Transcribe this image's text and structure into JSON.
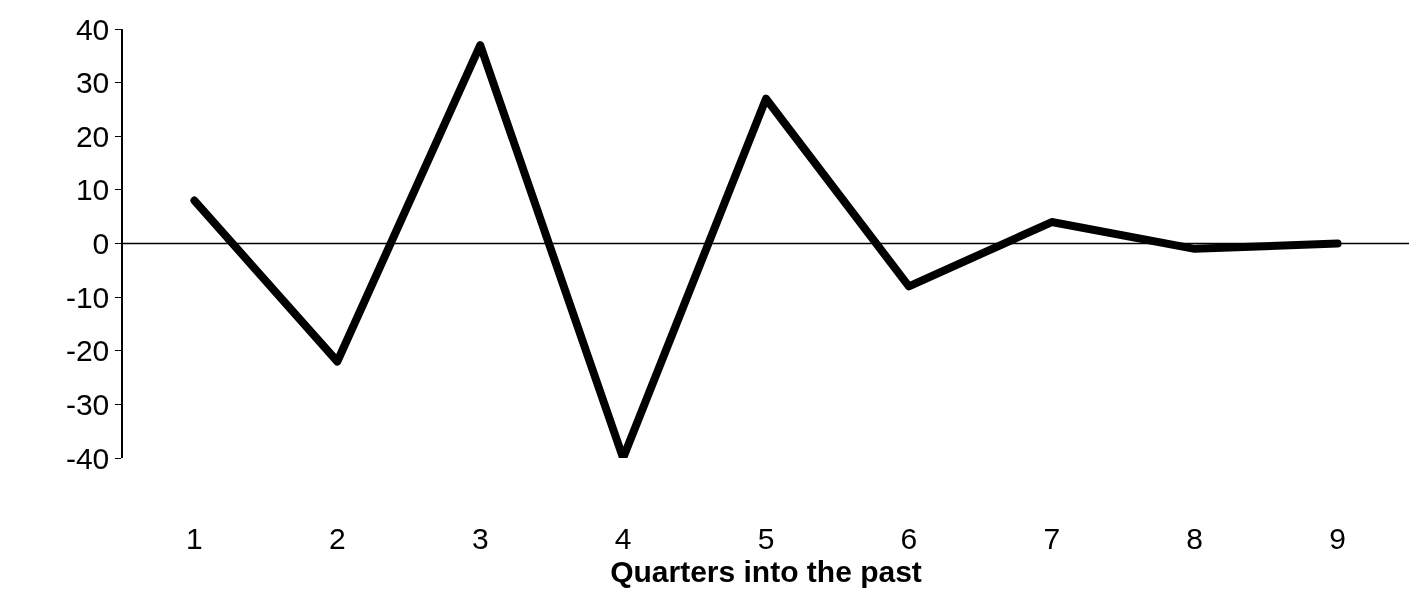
{
  "chart_data": {
    "type": "line",
    "xlabel": "Quarters into the past",
    "categories": [
      "1",
      "2",
      "3",
      "4",
      "5",
      "6",
      "7",
      "8",
      "9"
    ],
    "series": [
      {
        "color": "#000000",
        "values": [
          8,
          -22,
          37,
          -40,
          27,
          -8,
          4,
          -1,
          0
        ]
      }
    ],
    "ylim": [
      -40,
      40
    ],
    "yticks": [
      -40,
      -30,
      -20,
      -10,
      0,
      10,
      20,
      30,
      40
    ],
    "ref_lines": [
      {
        "axis": "y",
        "value": 0,
        "color": "#000000"
      }
    ],
    "marker": "none",
    "line_style": "solid"
  }
}
